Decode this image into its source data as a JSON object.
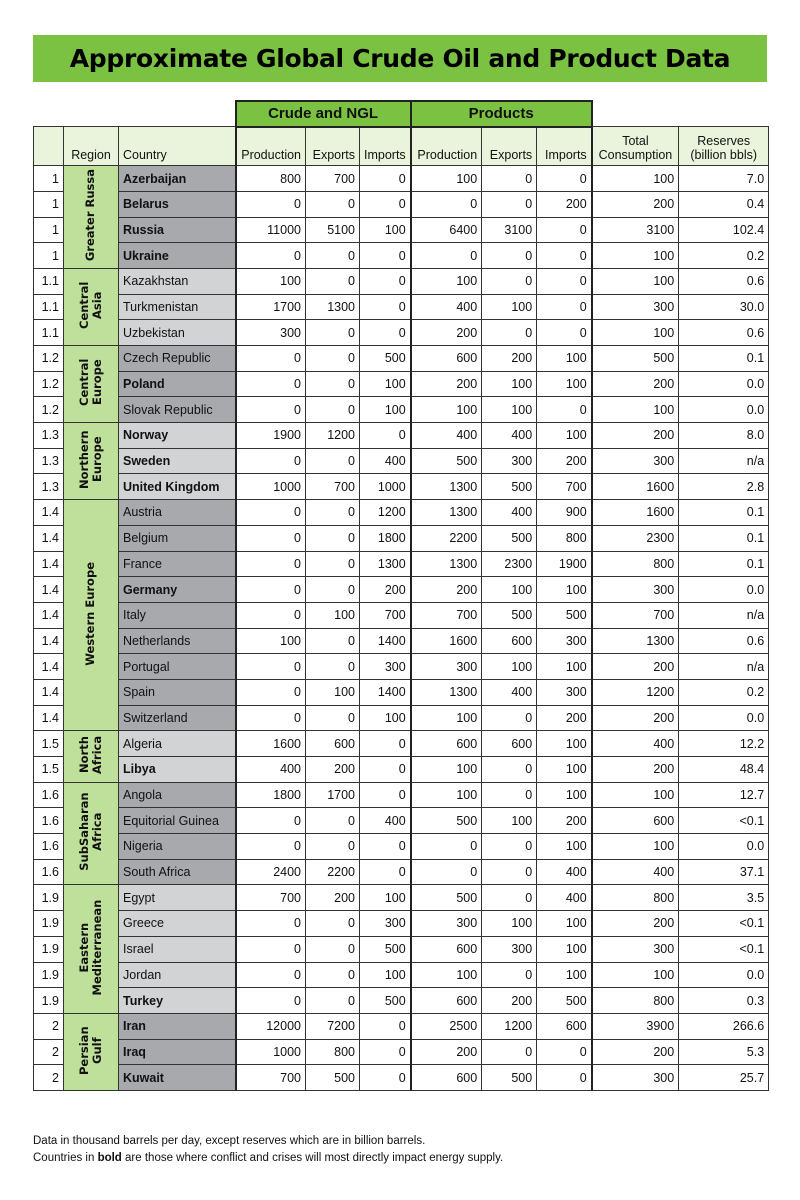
{
  "title": "Approximate Global Crude Oil and Product Data",
  "group_headers": {
    "crude": "Crude and NGL",
    "products": "Products"
  },
  "columns": [
    "",
    "Region",
    "Country",
    "Production",
    "Exports",
    "Imports",
    "Production",
    "Exports",
    "Imports",
    "Total Consumption",
    "Reserves (billion bbls)"
  ],
  "regions": [
    {
      "name": "Greater Russa",
      "shade": "dark",
      "rows": [
        {
          "idx": "1",
          "country": "Azerbaijan",
          "bold": true,
          "v": [
            "800",
            "700",
            "0",
            "100",
            "0",
            "0",
            "100",
            "7.0"
          ]
        },
        {
          "idx": "1",
          "country": "Belarus",
          "bold": true,
          "v": [
            "0",
            "0",
            "0",
            "0",
            "0",
            "200",
            "200",
            "0.4"
          ]
        },
        {
          "idx": "1",
          "country": "Russia",
          "bold": true,
          "v": [
            "11000",
            "5100",
            "100",
            "6400",
            "3100",
            "0",
            "3100",
            "102.4"
          ]
        },
        {
          "idx": "1",
          "country": "Ukraine",
          "bold": true,
          "v": [
            "0",
            "0",
            "0",
            "0",
            "0",
            "0",
            "100",
            "0.2"
          ]
        }
      ]
    },
    {
      "name": "Central Asia",
      "shade": "light",
      "rows": [
        {
          "idx": "1.1",
          "country": "Kazakhstan",
          "bold": false,
          "v": [
            "100",
            "0",
            "0",
            "100",
            "0",
            "0",
            "100",
            "0.6"
          ]
        },
        {
          "idx": "1.1",
          "country": "Turkmenistan",
          "bold": false,
          "v": [
            "1700",
            "1300",
            "0",
            "400",
            "100",
            "0",
            "300",
            "30.0"
          ]
        },
        {
          "idx": "1.1",
          "country": "Uzbekistan",
          "bold": false,
          "v": [
            "300",
            "0",
            "0",
            "200",
            "0",
            "0",
            "100",
            "0.6"
          ]
        }
      ]
    },
    {
      "name": "Central Europe",
      "shade": "dark",
      "rows": [
        {
          "idx": "1.2",
          "country": "Czech Republic",
          "bold": false,
          "v": [
            "0",
            "0",
            "500",
            "600",
            "200",
            "100",
            "500",
            "0.1"
          ]
        },
        {
          "idx": "1.2",
          "country": "Poland",
          "bold": true,
          "v": [
            "0",
            "0",
            "100",
            "200",
            "100",
            "100",
            "200",
            "0.0"
          ]
        },
        {
          "idx": "1.2",
          "country": "Slovak Republic",
          "bold": false,
          "v": [
            "0",
            "0",
            "100",
            "100",
            "100",
            "0",
            "100",
            "0.0"
          ]
        }
      ]
    },
    {
      "name": "Northern Europe",
      "shade": "light",
      "rows": [
        {
          "idx": "1.3",
          "country": "Norway",
          "bold": true,
          "v": [
            "1900",
            "1200",
            "0",
            "400",
            "400",
            "100",
            "200",
            "8.0"
          ]
        },
        {
          "idx": "1.3",
          "country": "Sweden",
          "bold": true,
          "v": [
            "0",
            "0",
            "400",
            "500",
            "300",
            "200",
            "300",
            "n/a"
          ]
        },
        {
          "idx": "1.3",
          "country": "United Kingdom",
          "bold": true,
          "v": [
            "1000",
            "700",
            "1000",
            "1300",
            "500",
            "700",
            "1600",
            "2.8"
          ]
        }
      ]
    },
    {
      "name": "Western Europe",
      "shade": "dark",
      "rows": [
        {
          "idx": "1.4",
          "country": "Austria",
          "bold": false,
          "v": [
            "0",
            "0",
            "1200",
            "1300",
            "400",
            "900",
            "1600",
            "0.1"
          ]
        },
        {
          "idx": "1.4",
          "country": "Belgium",
          "bold": false,
          "v": [
            "0",
            "0",
            "1800",
            "2200",
            "500",
            "800",
            "2300",
            "0.1"
          ]
        },
        {
          "idx": "1.4",
          "country": "France",
          "bold": false,
          "v": [
            "0",
            "0",
            "1300",
            "1300",
            "2300",
            "1900",
            "800",
            "0.1"
          ]
        },
        {
          "idx": "1.4",
          "country": "Germany",
          "bold": true,
          "v": [
            "0",
            "0",
            "200",
            "200",
            "100",
            "100",
            "300",
            "0.0"
          ]
        },
        {
          "idx": "1.4",
          "country": "Italy",
          "bold": false,
          "v": [
            "0",
            "100",
            "700",
            "700",
            "500",
            "500",
            "700",
            "n/a"
          ]
        },
        {
          "idx": "1.4",
          "country": "Netherlands",
          "bold": false,
          "v": [
            "100",
            "0",
            "1400",
            "1600",
            "600",
            "300",
            "1300",
            "0.6"
          ]
        },
        {
          "idx": "1.4",
          "country": "Portugal",
          "bold": false,
          "v": [
            "0",
            "0",
            "300",
            "300",
            "100",
            "100",
            "200",
            "n/a"
          ]
        },
        {
          "idx": "1.4",
          "country": "Spain",
          "bold": false,
          "v": [
            "0",
            "100",
            "1400",
            "1300",
            "400",
            "300",
            "1200",
            "0.2"
          ]
        },
        {
          "idx": "1.4",
          "country": "Switzerland",
          "bold": false,
          "v": [
            "0",
            "0",
            "100",
            "100",
            "0",
            "200",
            "200",
            "0.0"
          ]
        }
      ]
    },
    {
      "name": "North Africa",
      "shade": "light",
      "rows": [
        {
          "idx": "1.5",
          "country": "Algeria",
          "bold": false,
          "v": [
            "1600",
            "600",
            "0",
            "600",
            "600",
            "100",
            "400",
            "12.2"
          ]
        },
        {
          "idx": "1.5",
          "country": "Libya",
          "bold": true,
          "v": [
            "400",
            "200",
            "0",
            "100",
            "0",
            "100",
            "200",
            "48.4"
          ]
        }
      ]
    },
    {
      "name": "SubSaharan Africa",
      "shade": "dark",
      "rows": [
        {
          "idx": "1.6",
          "country": "Angola",
          "bold": false,
          "v": [
            "1800",
            "1700",
            "0",
            "100",
            "0",
            "100",
            "100",
            "12.7"
          ]
        },
        {
          "idx": "1.6",
          "country": "Equitorial Guinea",
          "bold": false,
          "v": [
            "0",
            "0",
            "400",
            "500",
            "100",
            "200",
            "600",
            "<0.1"
          ]
        },
        {
          "idx": "1.6",
          "country": "Nigeria",
          "bold": false,
          "v": [
            "0",
            "0",
            "0",
            "0",
            "0",
            "100",
            "100",
            "0.0"
          ]
        },
        {
          "idx": "1.6",
          "country": "South Africa",
          "bold": false,
          "v": [
            "2400",
            "2200",
            "0",
            "0",
            "0",
            "400",
            "400",
            "37.1"
          ]
        }
      ]
    },
    {
      "name": "Eastern Mediterranean",
      "shade": "light",
      "rows": [
        {
          "idx": "1.9",
          "country": "Egypt",
          "bold": false,
          "v": [
            "700",
            "200",
            "100",
            "500",
            "0",
            "400",
            "800",
            "3.5"
          ]
        },
        {
          "idx": "1.9",
          "country": "Greece",
          "bold": false,
          "v": [
            "0",
            "0",
            "300",
            "300",
            "100",
            "100",
            "200",
            "<0.1"
          ]
        },
        {
          "idx": "1.9",
          "country": "Israel",
          "bold": false,
          "v": [
            "0",
            "0",
            "500",
            "600",
            "300",
            "100",
            "300",
            "<0.1"
          ]
        },
        {
          "idx": "1.9",
          "country": "Jordan",
          "bold": false,
          "v": [
            "0",
            "0",
            "100",
            "100",
            "0",
            "100",
            "100",
            "0.0"
          ]
        },
        {
          "idx": "1.9",
          "country": "Turkey",
          "bold": true,
          "v": [
            "0",
            "0",
            "500",
            "600",
            "200",
            "500",
            "800",
            "0.3"
          ]
        }
      ]
    },
    {
      "name": "Persian Gulf",
      "shade": "dark",
      "rows": [
        {
          "idx": "2",
          "country": "Iran",
          "bold": true,
          "v": [
            "12000",
            "7200",
            "0",
            "2500",
            "1200",
            "600",
            "3900",
            "266.6"
          ]
        },
        {
          "idx": "2",
          "country": "Iraq",
          "bold": true,
          "v": [
            "1000",
            "800",
            "0",
            "200",
            "0",
            "0",
            "200",
            "5.3"
          ]
        },
        {
          "idx": "2",
          "country": "Kuwait",
          "bold": true,
          "v": [
            "700",
            "500",
            "0",
            "600",
            "500",
            "0",
            "300",
            "25.7"
          ]
        }
      ]
    }
  ],
  "notes": {
    "line1": "Data in thousand barrels per day, except reserves which are in billion barrels.",
    "line2_pre": "Countries in ",
    "line2_bold": "bold",
    "line2_post": " are those where conflict and crises will most directly impact energy supply."
  },
  "colors": {
    "accent_green": "#7cc242",
    "region_green": "#bfe09b",
    "dark_gray": "#a7a9ac",
    "light_gray": "#d1d3d4"
  }
}
